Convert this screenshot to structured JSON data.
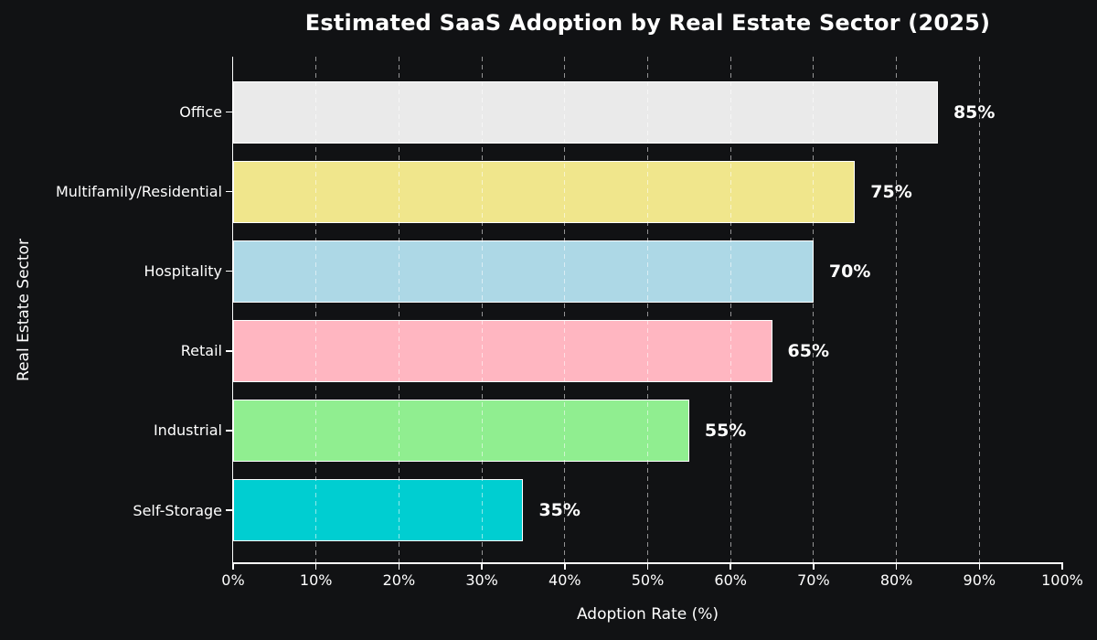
{
  "chart_data": {
    "type": "bar",
    "orientation": "horizontal",
    "title": "Estimated SaaS Adoption by Real Estate Sector (2025)",
    "xlabel": "Adoption Rate (%)",
    "ylabel": "Real Estate Sector",
    "categories": [
      "Office",
      "Multifamily/Residential",
      "Hospitality",
      "Retail",
      "Industrial",
      "Self-Storage"
    ],
    "values": [
      85,
      75,
      70,
      65,
      55,
      35
    ],
    "value_labels": [
      "85%",
      "75%",
      "70%",
      "65%",
      "55%",
      "35%"
    ],
    "bar_colors": [
      "#eaeaea",
      "#f0e68c",
      "#add8e6",
      "#ffb6c1",
      "#90ee90",
      "#00ced1"
    ],
    "xlim": [
      0,
      100
    ],
    "x_ticks": [
      0,
      10,
      20,
      30,
      40,
      50,
      60,
      70,
      80,
      90,
      100
    ],
    "x_tick_labels": [
      "0%",
      "10%",
      "20%",
      "30%",
      "40%",
      "50%",
      "60%",
      "70%",
      "80%",
      "90%",
      "100%"
    ],
    "grid": {
      "axis": "x",
      "style": "dashed",
      "positions": [
        10,
        20,
        30,
        40,
        50,
        60,
        70,
        80,
        90
      ]
    },
    "legend": "none",
    "colors": {
      "background": "#111214",
      "text": "#ffffff",
      "bar_edge": "#ffffff",
      "grid": "rgba(255,255,255,0.55)",
      "spine": "#ffffff"
    }
  }
}
